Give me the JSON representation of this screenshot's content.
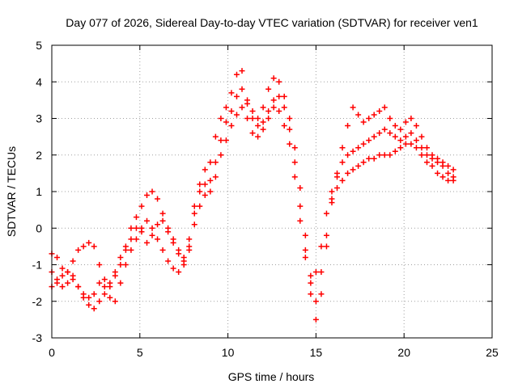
{
  "chart_data": {
    "type": "scatter",
    "title": "Day 077 of 2026, Sidereal Day-to-day VTEC variation (SDTVAR) for receiver ven1",
    "xlabel": "GPS time / hours",
    "ylabel": "SDTVAR / TECUs",
    "xlim": [
      0,
      25
    ],
    "ylim": [
      -3,
      5
    ],
    "xticks": [
      "0",
      "5",
      "10",
      "15",
      "20",
      "25"
    ],
    "yticks": [
      "-3",
      "-2",
      "-1",
      "0",
      "1",
      "2",
      "3",
      "4",
      "5"
    ],
    "grid": true,
    "marker": "+",
    "color": "#ff0000",
    "series": [
      {
        "x": [
          0.0,
          0.3,
          0.6,
          0.9,
          1.2,
          1.5,
          1.8,
          2.1,
          2.4,
          2.7,
          3.0,
          3.3,
          3.6,
          3.9,
          4.2,
          4.5,
          4.8,
          5.1,
          5.4,
          5.7,
          6.0,
          6.3,
          6.6,
          6.9,
          7.2,
          7.5,
          7.8,
          8.1,
          8.4,
          8.7,
          9.0,
          9.3,
          9.6,
          9.9,
          10.2,
          10.5,
          10.8,
          11.1,
          11.4,
          11.7,
          12.0,
          12.3,
          12.6,
          12.9,
          13.2,
          13.5,
          13.8,
          14.1,
          14.4,
          14.7,
          15.0,
          15.3,
          15.6,
          15.9,
          16.2,
          16.5,
          16.8,
          17.1,
          17.4,
          17.7,
          18.0,
          18.3,
          18.6,
          18.9,
          19.2,
          19.5,
          19.8,
          20.1,
          20.4,
          20.7,
          21.0,
          21.3,
          21.6,
          21.9,
          22.2,
          22.5,
          22.8
        ],
        "y": [
          -0.7,
          -0.8,
          -1.1,
          -1.2,
          -1.4,
          -1.6,
          -1.9,
          -2.1,
          -2.2,
          -2.0,
          -1.8,
          -1.5,
          -1.3,
          -1.0,
          -0.6,
          -0.3,
          0.0,
          -0.1,
          -0.4,
          -0.2,
          0.1,
          0.2,
          -0.1,
          -0.4,
          -0.6,
          -0.8,
          -0.5,
          0.4,
          1.2,
          1.6,
          1.8,
          2.5,
          3.0,
          3.3,
          3.7,
          4.2,
          4.3,
          3.5,
          3.2,
          3.0,
          3.3,
          3.8,
          4.1,
          4.0,
          3.6,
          3.0,
          2.2,
          1.1,
          -0.2,
          -1.5,
          -2.5,
          -1.8,
          -0.5,
          0.8,
          1.5,
          2.2,
          2.8,
          3.3,
          3.1,
          2.9,
          3.0,
          3.1,
          3.2,
          3.3,
          3.0,
          2.8,
          2.7,
          2.9,
          3.0,
          2.8,
          2.5,
          2.2,
          2.0,
          1.9,
          1.8,
          1.7,
          1.6
        ]
      },
      {
        "x": [
          0.0,
          0.3,
          0.6,
          0.9,
          1.2,
          1.5,
          1.8,
          2.1,
          2.4,
          2.7,
          3.0,
          3.3,
          3.6,
          3.9,
          4.2,
          4.5,
          4.8,
          5.1,
          5.4,
          5.7,
          6.0,
          6.3,
          6.6,
          6.9,
          7.2,
          7.5,
          7.8,
          8.1,
          8.4,
          8.7,
          9.0,
          9.3,
          9.6,
          9.9,
          10.2,
          10.5,
          10.8,
          11.1,
          11.4,
          11.7,
          12.0,
          12.3,
          12.6,
          12.9,
          13.2,
          13.5,
          13.8,
          14.1,
          14.4,
          14.7,
          15.0,
          15.3,
          15.6,
          15.9,
          16.2,
          16.5,
          16.8,
          17.1,
          17.4,
          17.7,
          18.0,
          18.3,
          18.6,
          18.9,
          19.2,
          19.5,
          19.8,
          20.1,
          20.4,
          20.7,
          21.0,
          21.3,
          21.6,
          21.9,
          22.2,
          22.5,
          22.8
        ],
        "y": [
          -1.6,
          -1.5,
          -1.3,
          -1.2,
          -0.9,
          -0.6,
          -0.5,
          -0.4,
          -0.5,
          -1.0,
          -1.4,
          -1.6,
          -1.2,
          -0.8,
          -0.5,
          0.0,
          0.3,
          0.6,
          0.9,
          1.0,
          0.8,
          0.4,
          0.0,
          -0.3,
          -0.7,
          -0.9,
          -0.3,
          0.6,
          1.0,
          1.2,
          1.3,
          1.8,
          2.4,
          2.9,
          3.2,
          3.6,
          3.8,
          3.4,
          3.0,
          2.8,
          2.9,
          3.2,
          3.5,
          3.6,
          3.3,
          2.7,
          1.8,
          0.6,
          -0.6,
          -1.3,
          -1.2,
          -0.5,
          0.4,
          1.0,
          1.4,
          1.8,
          2.0,
          2.1,
          2.2,
          2.3,
          2.4,
          2.5,
          2.6,
          2.7,
          2.6,
          2.5,
          2.4,
          2.5,
          2.6,
          2.4,
          2.2,
          2.0,
          1.9,
          1.8,
          1.7,
          1.5,
          1.4
        ]
      },
      {
        "x": [
          0.0,
          0.3,
          0.6,
          0.9,
          1.2,
          1.5,
          1.8,
          2.1,
          2.4,
          2.7,
          3.0,
          3.3,
          3.6,
          3.9,
          4.2,
          4.5,
          4.8,
          5.1,
          5.4,
          5.7,
          6.0,
          6.3,
          6.6,
          6.9,
          7.2,
          7.5,
          7.8,
          8.1,
          8.4,
          8.7,
          9.0,
          9.3,
          9.6,
          9.9,
          10.2,
          10.5,
          10.8,
          11.1,
          11.4,
          11.7,
          12.0,
          12.3,
          12.6,
          12.9,
          13.2,
          13.5,
          13.8,
          14.1,
          14.4,
          14.7,
          15.0,
          15.3,
          15.6,
          15.9,
          16.2,
          16.5,
          16.8,
          17.1,
          17.4,
          17.7,
          18.0,
          18.3,
          18.6,
          18.9,
          19.2,
          19.5,
          19.8,
          20.1,
          20.4,
          20.7,
          21.0,
          21.3,
          21.6,
          21.9,
          22.2,
          22.5,
          22.8
        ],
        "y": [
          -1.2,
          -1.4,
          -1.6,
          -1.5,
          -1.3,
          -1.6,
          -1.8,
          -1.9,
          -1.8,
          -1.5,
          -1.6,
          -1.9,
          -2.0,
          -1.5,
          -1.0,
          -0.6,
          -0.3,
          0.0,
          0.2,
          0.0,
          -0.3,
          -0.6,
          -0.9,
          -1.1,
          -1.2,
          -1.0,
          -0.6,
          0.1,
          0.6,
          0.9,
          1.0,
          1.4,
          2.0,
          2.4,
          2.8,
          3.1,
          3.3,
          3.0,
          2.6,
          2.5,
          2.7,
          3.0,
          3.3,
          3.2,
          2.8,
          2.3,
          1.4,
          0.2,
          -0.8,
          -1.8,
          -2.0,
          -1.2,
          -0.2,
          0.7,
          1.1,
          1.3,
          1.5,
          1.6,
          1.7,
          1.8,
          1.9,
          1.9,
          2.0,
          2.0,
          2.0,
          2.1,
          2.2,
          2.3,
          2.3,
          2.2,
          2.0,
          1.8,
          1.7,
          1.5,
          1.4,
          1.3,
          1.3
        ]
      }
    ]
  }
}
